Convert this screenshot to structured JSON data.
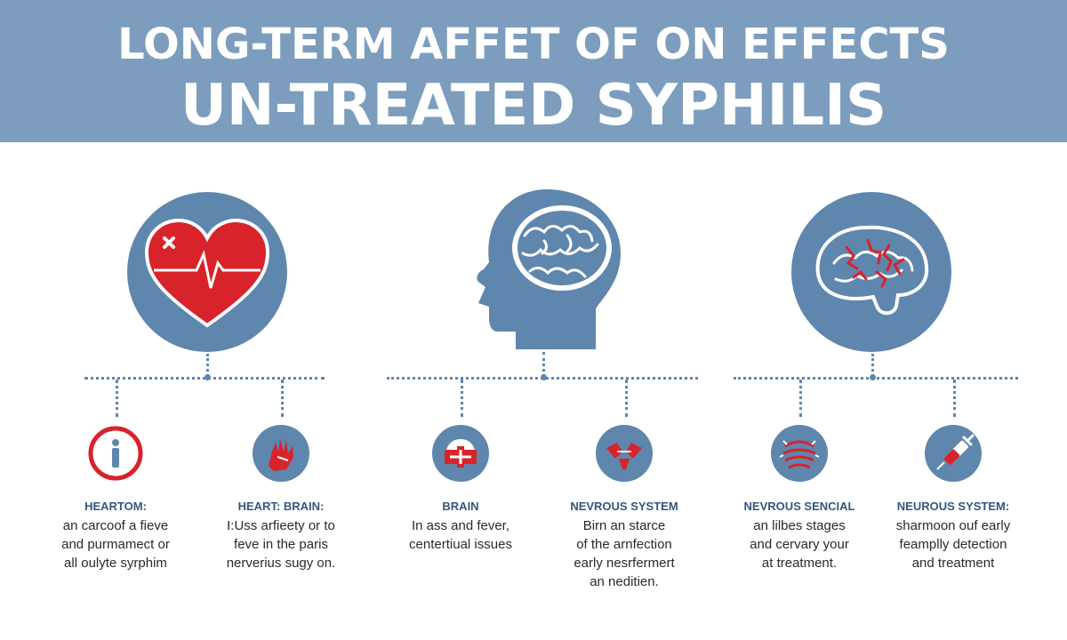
{
  "title": {
    "line1": "LONG-TERM AFFET OF ON EFFECTS",
    "line2": "UN-TREATED SYPHILIS"
  },
  "colors": {
    "banner": "#7c9dbd",
    "circle": "#5f86ad",
    "accent_red": "#d8232a",
    "label_text": "#34577d"
  },
  "groups": [
    {
      "icon": "heart-ecg-icon",
      "items": [
        {
          "icon": "person-in-circle-icon",
          "label": "HEARTOM:",
          "lines": [
            "an carcoof a fieve",
            "and purmamect or",
            "all oulyte syrphim"
          ]
        },
        {
          "icon": "hand-icon",
          "label": "HEART: BRAIN:",
          "lines": [
            "I:Uss arfieety or to",
            "feve in the paris",
            "nerverius sugy on."
          ]
        }
      ]
    },
    {
      "icon": "head-brain-icon",
      "items": [
        {
          "icon": "brain-bandage-icon",
          "label": "BRAIN",
          "lines": [
            "In ass and fever,",
            "centertiual issues"
          ]
        },
        {
          "icon": "nerve-cells-icon",
          "label": "NEVROUS SYSTEM",
          "lines": [
            "Birn an starce",
            "of the arnfection",
            "early nesrfermert",
            "an neditien."
          ]
        }
      ]
    },
    {
      "icon": "brain-lesions-icon",
      "items": [
        {
          "icon": "spine-nerves-icon",
          "label": "NEVROUS SENCIAL",
          "lines": [
            "an lilbes stages",
            "and cervary your",
            "at treatment."
          ]
        },
        {
          "icon": "syringe-icon",
          "label": "NEUROUS SYSTEM:",
          "lines": [
            "sharmoon ouf early",
            "feamplly detection",
            "and treatment"
          ]
        }
      ]
    }
  ]
}
